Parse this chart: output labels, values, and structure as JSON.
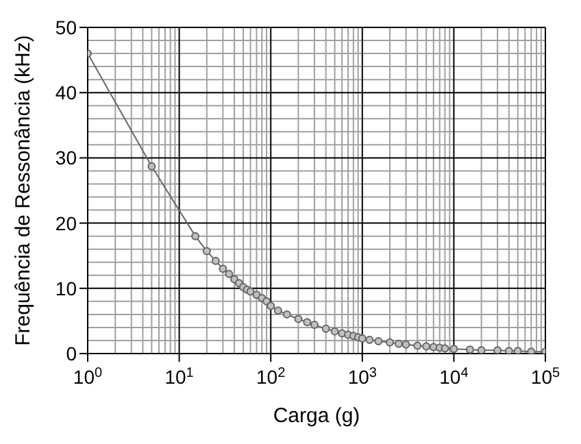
{
  "chart_data": {
    "type": "line",
    "xlabel": "Carga (g)",
    "ylabel": "Frequência de Ressonância  (kHz)",
    "log": "x",
    "grid": true,
    "marker": "circle",
    "line_style": "solid",
    "xlim": [
      1,
      100000
    ],
    "ylim": [
      0,
      50
    ],
    "xticks": [
      {
        "value": 1,
        "label": "10$^{0}$"
      },
      {
        "value": 10,
        "label": "10$^{1}$"
      },
      {
        "value": 100,
        "label": "10$^{2}$"
      },
      {
        "value": 1000,
        "label": "10$^{3}$"
      },
      {
        "value": 10000,
        "label": "10$^{4}$"
      },
      {
        "value": 100000,
        "label": "10$^{5}$"
      }
    ],
    "yticks": [
      0,
      10,
      20,
      30,
      40,
      50
    ],
    "x": [
      1,
      5,
      15,
      20,
      25,
      30,
      35,
      40,
      45,
      50,
      55,
      60,
      70,
      80,
      90,
      100,
      120,
      150,
      200,
      250,
      300,
      400,
      500,
      600,
      700,
      800,
      900,
      1000,
      1200,
      1500,
      2000,
      2500,
      3000,
      4000,
      5000,
      6000,
      7000,
      8000,
      10000,
      15000,
      20000,
      30000,
      40000,
      50000,
      70000,
      100000
    ],
    "series": [
      {
        "color": "#666666",
        "values": [
          46,
          28.7,
          18,
          15.7,
          14.2,
          13,
          12.2,
          11.4,
          10.8,
          10.2,
          9.8,
          9.5,
          9,
          8.5,
          8,
          7.3,
          6.6,
          6,
          5.3,
          4.8,
          4.4,
          3.8,
          3.4,
          3.1,
          2.9,
          2.7,
          2.5,
          2.3,
          2.1,
          1.9,
          1.7,
          1.5,
          1.4,
          1.2,
          1.1,
          1,
          0.9,
          0.8,
          0.7,
          0.6,
          0.5,
          0.5,
          0.4,
          0.4,
          0.3,
          0.3
        ]
      }
    ]
  }
}
